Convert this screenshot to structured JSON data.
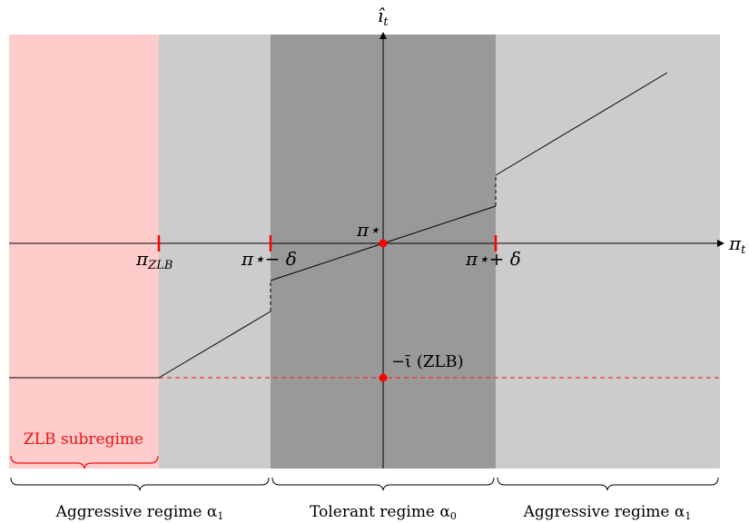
{
  "labels": {
    "x_axis": "π",
    "x_axis_sub": "t",
    "y_axis": "î",
    "y_axis_sub": "t",
    "pi_zlb": "π",
    "pi_zlb_sub": "ZLB",
    "pi_minus_delta": "π⋆− δ",
    "pi_star": "π⋆",
    "pi_plus_delta": "π⋆+ δ",
    "zlb_point": "−ῑ (ZLB)",
    "zlb_subregime": "ZLB subregime",
    "aggressive_left": "Aggressive regime α",
    "aggressive_left_sub": "1",
    "tolerant": "Tolerant regime α",
    "tolerant_sub": "0",
    "aggressive_right": "Aggressive regime α",
    "aggressive_right_sub": "1"
  },
  "colors": {
    "zlb_region": "#ffcccc",
    "aggressive_region": "#cccccc",
    "tolerant_region": "#999999",
    "accent": "#ff0000",
    "line": "#000000"
  }
}
